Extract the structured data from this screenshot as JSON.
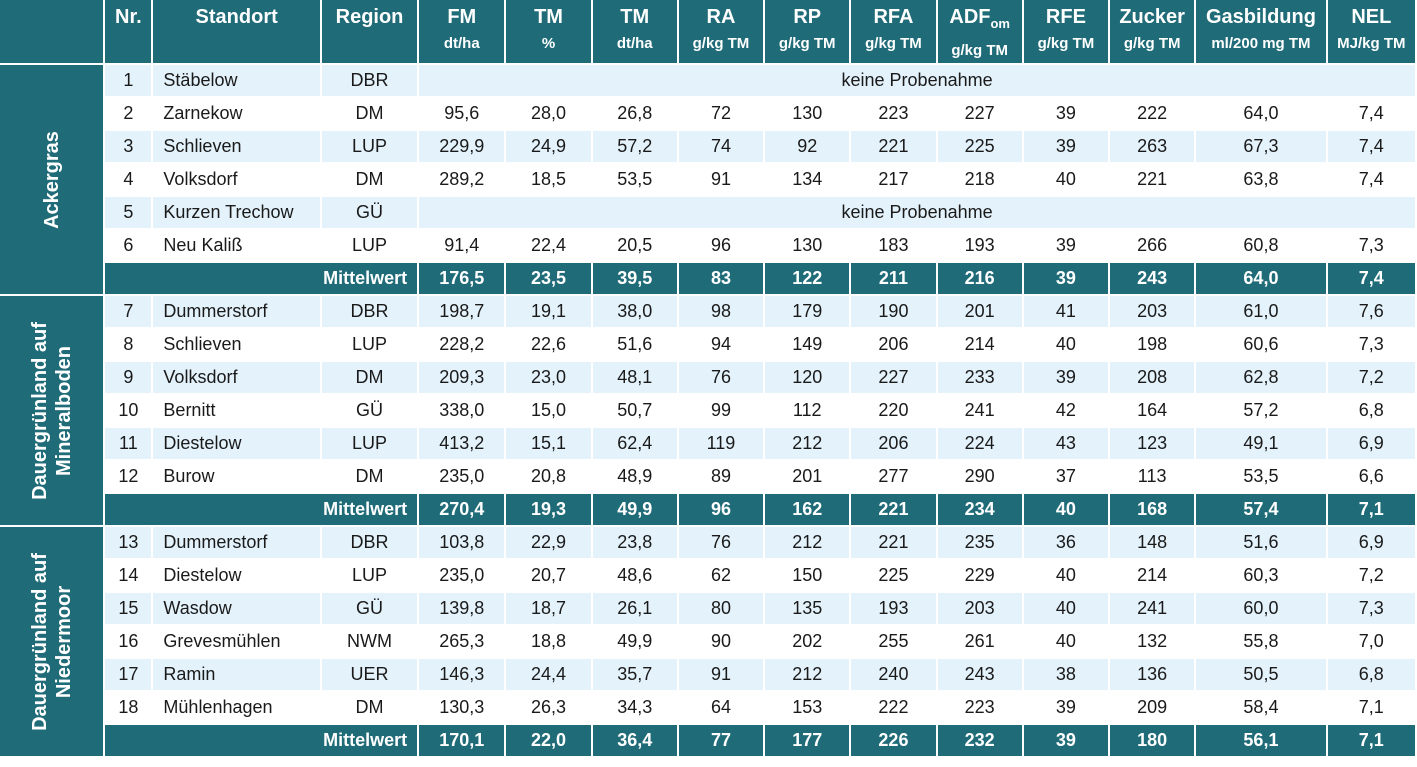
{
  "header": {
    "nr": "Nr.",
    "standort": "Standort",
    "region": "Region",
    "cols": [
      {
        "name": "FM",
        "unit": "dt/ha"
      },
      {
        "name": "TM",
        "unit": "%"
      },
      {
        "name": "TM",
        "unit": "dt/ha"
      },
      {
        "name": "RA",
        "unit": "g/kg TM"
      },
      {
        "name": "RP",
        "unit": "g/kg TM"
      },
      {
        "name": "RFA",
        "unit": "g/kg TM"
      },
      {
        "name": "ADF",
        "sub": "om",
        "unit": "g/kg TM"
      },
      {
        "name": "RFE",
        "unit": "g/kg TM"
      },
      {
        "name": "Zucker",
        "unit": "g/kg TM"
      },
      {
        "name": "Gasbildung",
        "unit": "ml/200 mg TM"
      },
      {
        "name": "NEL",
        "unit": "MJ/kg TM"
      }
    ]
  },
  "groups": [
    {
      "label_lines": [
        "Ackergras"
      ],
      "rows": [
        {
          "nr": "1",
          "standort": "Stäbelow",
          "region": "DBR",
          "note": "keine Probenahme"
        },
        {
          "nr": "2",
          "standort": "Zarnekow",
          "region": "DM",
          "values": [
            "95,6",
            "28,0",
            "26,8",
            "72",
            "130",
            "223",
            "227",
            "39",
            "222",
            "64,0",
            "7,4"
          ]
        },
        {
          "nr": "3",
          "standort": "Schlieven",
          "region": "LUP",
          "values": [
            "229,9",
            "24,9",
            "57,2",
            "74",
            "92",
            "221",
            "225",
            "39",
            "263",
            "67,3",
            "7,4"
          ]
        },
        {
          "nr": "4",
          "standort": "Volksdorf",
          "region": "DM",
          "values": [
            "289,2",
            "18,5",
            "53,5",
            "91",
            "134",
            "217",
            "218",
            "40",
            "221",
            "63,8",
            "7,4"
          ]
        },
        {
          "nr": "5",
          "standort": "Kurzen Trechow",
          "region": "GÜ",
          "note": "keine Probenahme"
        },
        {
          "nr": "6",
          "standort": "Neu Kaliß",
          "region": "LUP",
          "values": [
            "91,4",
            "22,4",
            "20,5",
            "96",
            "130",
            "183",
            "193",
            "39",
            "266",
            "60,8",
            "7,3"
          ]
        }
      ],
      "mean": {
        "label": "Mittelwert",
        "values": [
          "176,5",
          "23,5",
          "39,5",
          "83",
          "122",
          "211",
          "216",
          "39",
          "243",
          "64,0",
          "7,4"
        ]
      }
    },
    {
      "label_lines": [
        "Dauergrünland auf",
        "Mineralboden"
      ],
      "rows": [
        {
          "nr": "7",
          "standort": "Dummerstorf",
          "region": "DBR",
          "values": [
            "198,7",
            "19,1",
            "38,0",
            "98",
            "179",
            "190",
            "201",
            "41",
            "203",
            "61,0",
            "7,6"
          ]
        },
        {
          "nr": "8",
          "standort": "Schlieven",
          "region": "LUP",
          "values": [
            "228,2",
            "22,6",
            "51,6",
            "94",
            "149",
            "206",
            "214",
            "40",
            "198",
            "60,6",
            "7,3"
          ]
        },
        {
          "nr": "9",
          "standort": "Volksdorf",
          "region": "DM",
          "values": [
            "209,3",
            "23,0",
            "48,1",
            "76",
            "120",
            "227",
            "233",
            "39",
            "208",
            "62,8",
            "7,2"
          ]
        },
        {
          "nr": "10",
          "standort": "Bernitt",
          "region": "GÜ",
          "values": [
            "338,0",
            "15,0",
            "50,7",
            "99",
            "112",
            "220",
            "241",
            "42",
            "164",
            "57,2",
            "6,8"
          ]
        },
        {
          "nr": "11",
          "standort": "Diestelow",
          "region": "LUP",
          "values": [
            "413,2",
            "15,1",
            "62,4",
            "119",
            "212",
            "206",
            "224",
            "43",
            "123",
            "49,1",
            "6,9"
          ]
        },
        {
          "nr": "12",
          "standort": "Burow",
          "region": "DM",
          "values": [
            "235,0",
            "20,8",
            "48,9",
            "89",
            "201",
            "277",
            "290",
            "37",
            "113",
            "53,5",
            "6,6"
          ]
        }
      ],
      "mean": {
        "label": "Mittelwert",
        "values": [
          "270,4",
          "19,3",
          "49,9",
          "96",
          "162",
          "221",
          "234",
          "40",
          "168",
          "57,4",
          "7,1"
        ]
      }
    },
    {
      "label_lines": [
        "Dauergrünland auf",
        "Niedermoor"
      ],
      "rows": [
        {
          "nr": "13",
          "standort": "Dummerstorf",
          "region": "DBR",
          "values": [
            "103,8",
            "22,9",
            "23,8",
            "76",
            "212",
            "221",
            "235",
            "36",
            "148",
            "51,6",
            "6,9"
          ]
        },
        {
          "nr": "14",
          "standort": "Diestelow",
          "region": "LUP",
          "values": [
            "235,0",
            "20,7",
            "48,6",
            "62",
            "150",
            "225",
            "229",
            "40",
            "214",
            "60,3",
            "7,2"
          ]
        },
        {
          "nr": "15",
          "standort": "Wasdow",
          "region": "GÜ",
          "values": [
            "139,8",
            "18,7",
            "26,1",
            "80",
            "135",
            "193",
            "203",
            "40",
            "241",
            "60,0",
            "7,3"
          ]
        },
        {
          "nr": "16",
          "standort": "Grevesmühlen",
          "region": "NWM",
          "values": [
            "265,3",
            "18,8",
            "49,9",
            "90",
            "202",
            "255",
            "261",
            "40",
            "132",
            "55,8",
            "7,0"
          ]
        },
        {
          "nr": "17",
          "standort": "Ramin",
          "region": "UER",
          "values": [
            "146,3",
            "24,4",
            "35,7",
            "91",
            "212",
            "240",
            "243",
            "38",
            "136",
            "50,5",
            "6,8"
          ]
        },
        {
          "nr": "18",
          "standort": "Mühlenhagen",
          "region": "DM",
          "values": [
            "130,3",
            "26,3",
            "34,3",
            "64",
            "153",
            "222",
            "223",
            "39",
            "209",
            "58,4",
            "7,1"
          ]
        }
      ],
      "mean": {
        "label": "Mittelwert",
        "values": [
          "170,1",
          "22,0",
          "36,4",
          "77",
          "177",
          "226",
          "232",
          "39",
          "180",
          "56,1",
          "7,1"
        ]
      }
    }
  ]
}
